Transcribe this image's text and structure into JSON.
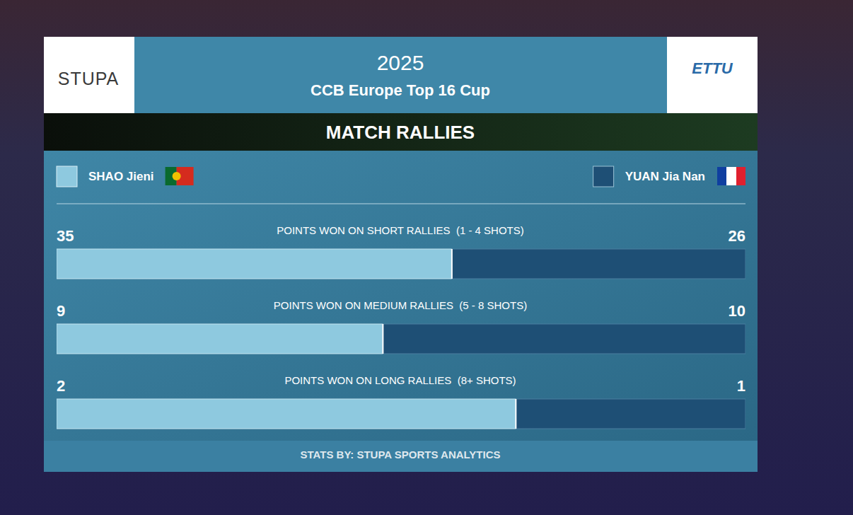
{
  "header": {
    "year": "2025",
    "event": "CCB Europe Top 16 Cup",
    "logos": [
      "STUPA",
      "ETTU"
    ]
  },
  "footer": "STATS BY: STUPA SPORTS ANALYTICS",
  "chart_data": {
    "type": "bar",
    "title": "MATCH RALLIES",
    "orientation": "horizontal",
    "stacked": true,
    "data_labels": true,
    "tick_labels": false,
    "legend": "top",
    "categories": [
      "POINTS WON ON SHORT RALLIES  (1 - 4 SHOTS)",
      "POINTS WON ON MEDIUM RALLIES  (5 - 8 SHOTS)",
      "POINTS WON ON LONG RALLIES  (8+ SHOTS)"
    ],
    "series": [
      {
        "name": "SHAO Jieni",
        "color": "#8ec9df",
        "values": [
          35,
          9,
          2
        ]
      },
      {
        "name": "YUAN Jia Nan",
        "color": "#1e4f75",
        "values": [
          26,
          10,
          1
        ]
      }
    ]
  }
}
